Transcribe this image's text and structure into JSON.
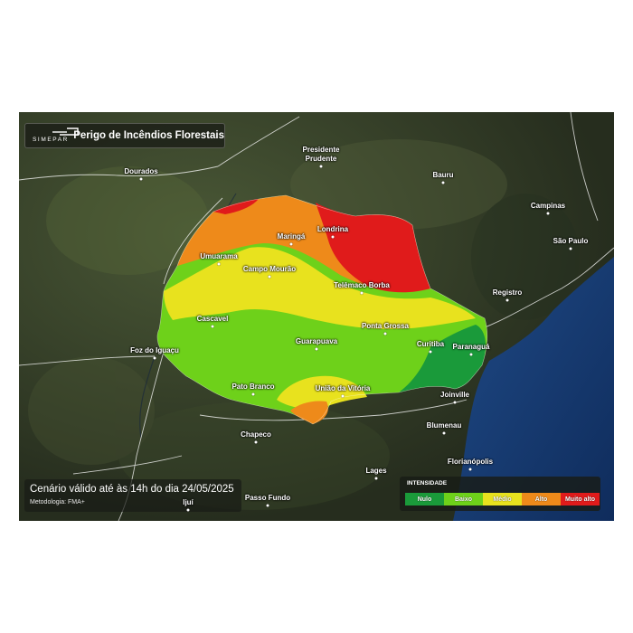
{
  "app": {
    "logo_text": "SIMEPAR",
    "title": "Perigo de Incêndios Florestais"
  },
  "footer": {
    "valid_text": "Cenário válido até às 14h do dia 24/05/2025",
    "method_text": "Metodologia: FMA+"
  },
  "legend": {
    "title": "INTENSIDADE",
    "items": [
      {
        "label": "Nulo",
        "color": "#1a9a3a"
      },
      {
        "label": "Baixo",
        "color": "#6ed11a"
      },
      {
        "label": "Médio",
        "color": "#e8e21e"
      },
      {
        "label": "Alto",
        "color": "#ee8a1a"
      },
      {
        "label": "Muito alto",
        "color": "#e01b1b"
      }
    ]
  },
  "cities": [
    {
      "name": "Dourados",
      "color": "#ffffff"
    },
    {
      "name": "Presidente\nPrudente",
      "color": "#ffffff"
    },
    {
      "name": "Bauru",
      "color": "#ffffff"
    },
    {
      "name": "Campinas",
      "color": "#ffffff"
    },
    {
      "name": "São Paulo",
      "color": "#ffffff"
    },
    {
      "name": "Registro",
      "color": "#ffffff"
    },
    {
      "name": "Umuarama",
      "color": "#ffffff"
    },
    {
      "name": "Maringá",
      "color": "#ffffff"
    },
    {
      "name": "Londrina",
      "color": "#ffffff"
    },
    {
      "name": "Campo Mourão",
      "color": "#ffffff"
    },
    {
      "name": "Telêmaco Borba",
      "color": "#ffffff"
    },
    {
      "name": "Cascavel",
      "color": "#ffffff"
    },
    {
      "name": "Ponta Grossa",
      "color": "#ffffff"
    },
    {
      "name": "Foz do Iguaçu",
      "color": "#ffffff"
    },
    {
      "name": "Guarapuava",
      "color": "#ffffff"
    },
    {
      "name": "Curitiba",
      "color": "#ffffff"
    },
    {
      "name": "Paranaguá",
      "color": "#ffffff"
    },
    {
      "name": "Pato Branco",
      "color": "#ffffff"
    },
    {
      "name": "União da Vitória",
      "color": "#ffffff"
    },
    {
      "name": "Joinville",
      "color": "#ffffff"
    },
    {
      "name": "Chapeco",
      "color": "#ffffff"
    },
    {
      "name": "Blumenau",
      "color": "#ffffff"
    },
    {
      "name": "Lages",
      "color": "#ffffff"
    },
    {
      "name": "Florianópolis",
      "color": "#ffffff"
    },
    {
      "name": "Passo Fundo",
      "color": "#ffffff"
    },
    {
      "name": "Ijuí",
      "color": "#ffffff"
    }
  ],
  "colors": {
    "land": "#2c3524",
    "ocean": "#1b3f7a",
    "borders": "#ffffff"
  }
}
